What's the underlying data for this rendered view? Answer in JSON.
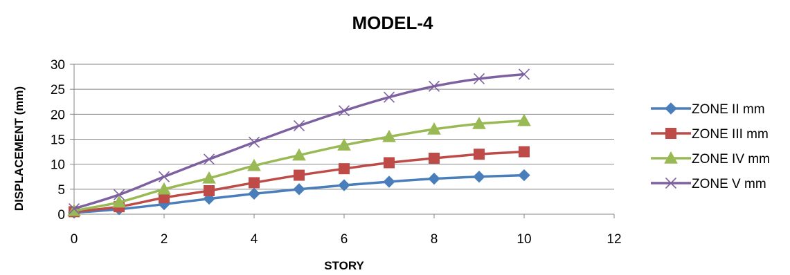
{
  "chart_data": {
    "type": "line",
    "title": "MODEL-4",
    "xlabel": "STORY",
    "ylabel": "DISPLACEMENT (mm)",
    "xlim": [
      0,
      12
    ],
    "ylim": [
      0,
      30
    ],
    "xticks": [
      "0",
      "2",
      "4",
      "6",
      "8",
      "10",
      "12"
    ],
    "yticks": [
      "0",
      "5",
      "10",
      "15",
      "20",
      "25",
      "30"
    ],
    "grid": "horizontal",
    "legend_position": "right",
    "x": [
      0,
      1,
      2,
      3,
      4,
      5,
      6,
      7,
      8,
      9,
      10
    ],
    "series": [
      {
        "name": "ZONE II mm",
        "color": "#4A7EBB",
        "marker": "diamond",
        "values": [
          0.3,
          1.0,
          2.0,
          3.1,
          4.1,
          5.0,
          5.8,
          6.5,
          7.1,
          7.5,
          7.8
        ]
      },
      {
        "name": "ZONE III mm",
        "color": "#BE4B48",
        "marker": "square",
        "values": [
          0.5,
          1.5,
          3.3,
          4.7,
          6.3,
          7.8,
          9.1,
          10.3,
          11.2,
          12.0,
          12.5
        ]
      },
      {
        "name": "ZONE IV mm",
        "color": "#98B954",
        "marker": "triangle",
        "values": [
          0.7,
          2.4,
          5.0,
          7.2,
          9.7,
          11.8,
          13.8,
          15.5,
          17.0,
          18.1,
          18.7
        ]
      },
      {
        "name": "ZONE V mm",
        "color": "#7D60A0",
        "marker": "x",
        "values": [
          1.1,
          3.9,
          7.5,
          11.0,
          14.4,
          17.7,
          20.7,
          23.4,
          25.6,
          27.1,
          28.0
        ]
      }
    ]
  }
}
